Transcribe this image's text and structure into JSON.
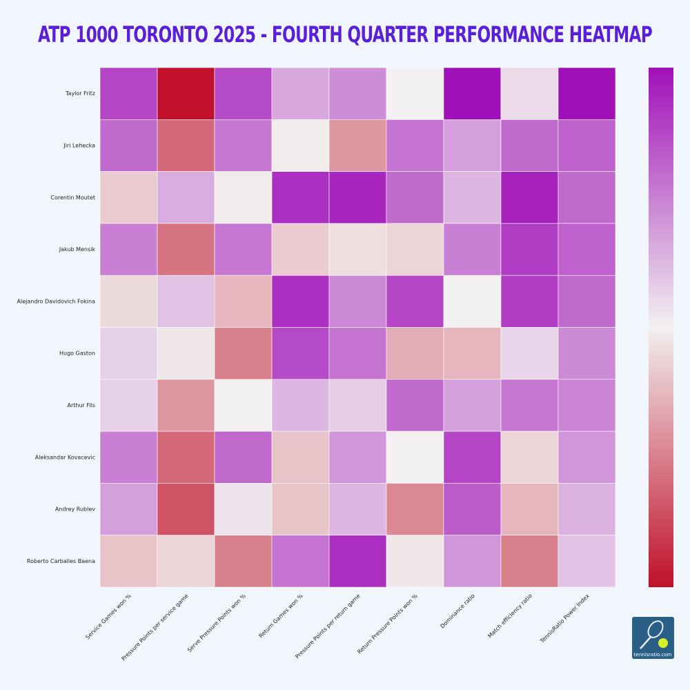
{
  "chart_data": {
    "type": "heatmap",
    "title": "ATP 1000 TORONTO 2025 - FOURTH QUARTER PERFORMANCE HEATMAP",
    "rows": [
      "Taylor Fritz",
      "Jiri Lehecka",
      "Corentin Moutet",
      "Jakub Mensik",
      "Alejandro Davidovich Fokina",
      "Hugo Gaston",
      "Arthur Fils",
      "Aleksandar Kovacevic",
      "Andrey Rublev",
      "Roberto Carballes Baena"
    ],
    "columns": [
      "Service Games won %",
      "Pressure Points per service game",
      "Serve Pressure Points won %",
      "Return Games won %",
      "Pressure Points per return game",
      "Return Pressure Points won %",
      "Dominance ratio",
      "Match efficiency ratio",
      "TennisRatio Power Index"
    ],
    "values": [
      [
        0.88,
        0.0,
        0.87,
        0.66,
        0.72,
        0.5,
        1.0,
        0.55,
        1.0
      ],
      [
        0.8,
        0.2,
        0.77,
        0.49,
        0.3,
        0.78,
        0.68,
        0.8,
        0.82
      ],
      [
        0.42,
        0.65,
        0.49,
        0.93,
        0.95,
        0.8,
        0.63,
        0.96,
        0.8
      ],
      [
        0.75,
        0.22,
        0.77,
        0.42,
        0.46,
        0.44,
        0.75,
        0.9,
        0.82
      ],
      [
        0.45,
        0.6,
        0.37,
        0.93,
        0.73,
        0.88,
        0.5,
        0.9,
        0.8
      ],
      [
        0.57,
        0.48,
        0.25,
        0.87,
        0.78,
        0.35,
        0.37,
        0.56,
        0.73
      ],
      [
        0.57,
        0.3,
        0.5,
        0.63,
        0.58,
        0.8,
        0.68,
        0.77,
        0.74
      ],
      [
        0.75,
        0.2,
        0.8,
        0.4,
        0.7,
        0.5,
        0.88,
        0.44,
        0.7
      ],
      [
        0.68,
        0.15,
        0.53,
        0.4,
        0.63,
        0.27,
        0.83,
        0.37,
        0.64
      ],
      [
        0.4,
        0.44,
        0.25,
        0.78,
        0.93,
        0.48,
        0.7,
        0.25,
        0.6
      ]
    ],
    "zlim": [
      0,
      1
    ],
    "colorscale": [
      "#c0102a",
      "#f2f0f0",
      "#a010b8"
    ],
    "watermark": "tennisratio.com"
  }
}
